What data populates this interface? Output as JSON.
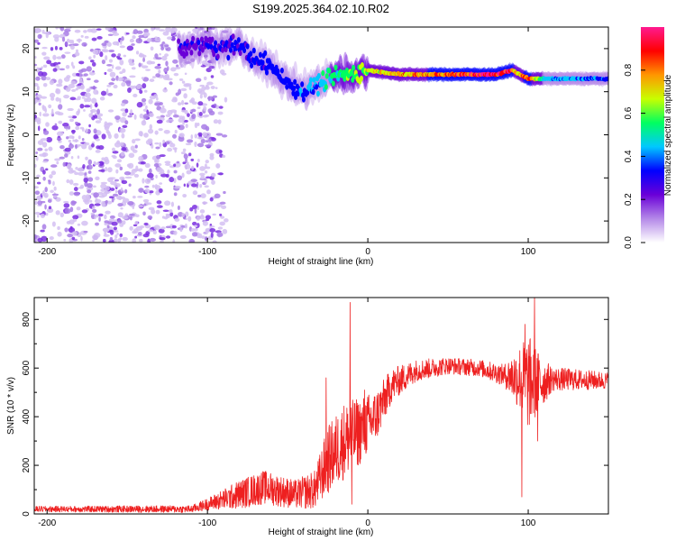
{
  "figure_title": "S199.2025.364.02.10.R02",
  "chart_data": [
    {
      "type": "heatmap",
      "panel": "spectrogram",
      "xlabel": "Height of straight line (km)",
      "ylabel": "Frequency (Hz)",
      "xlim": [
        -208,
        150
      ],
      "ylim": [
        -25,
        25
      ],
      "xticks": [
        -200,
        -100,
        0,
        100
      ],
      "yticks": [
        -20,
        -10,
        0,
        10,
        20
      ],
      "colorbar": {
        "label": "Normalized spectral amplitude",
        "range": [
          0.0,
          1.0
        ],
        "ticks": [
          0.0,
          0.2,
          0.4,
          0.6,
          0.8
        ],
        "tick_labels": [
          "0.0",
          "0.2",
          "0.4",
          "0.6",
          "0.8"
        ],
        "colormap": [
          "#ffffff",
          "#b488e8",
          "#6a00d8",
          "#0000ff",
          "#00c8ff",
          "#00ff60",
          "#c8ff00",
          "#ff9600",
          "#ff0000",
          "#ff1a90"
        ]
      },
      "noise_region": {
        "x": [
          -208,
          -96
        ],
        "y": [
          -25,
          25
        ],
        "amplitude": 0.1
      },
      "tone_track": [
        {
          "x": -115,
          "y": 20
        },
        {
          "x": -100,
          "y": 21
        },
        {
          "x": -90,
          "y": 20
        },
        {
          "x": -80,
          "y": 21
        },
        {
          "x": -70,
          "y": 17
        },
        {
          "x": -60,
          "y": 16
        },
        {
          "x": -50,
          "y": 12
        },
        {
          "x": -40,
          "y": 10
        },
        {
          "x": -30,
          "y": 12
        },
        {
          "x": -20,
          "y": 14
        },
        {
          "x": -10,
          "y": 14
        },
        {
          "x": 0,
          "y": 15
        },
        {
          "x": 20,
          "y": 14
        },
        {
          "x": 60,
          "y": 14
        },
        {
          "x": 80,
          "y": 14
        },
        {
          "x": 90,
          "y": 15
        },
        {
          "x": 100,
          "y": 13
        },
        {
          "x": 120,
          "y": 13
        },
        {
          "x": 150,
          "y": 13
        }
      ],
      "tone_amplitude": [
        {
          "x": -115,
          "a": 0.25
        },
        {
          "x": -80,
          "a": 0.3
        },
        {
          "x": -40,
          "a": 0.35
        },
        {
          "x": -20,
          "a": 0.5
        },
        {
          "x": 0,
          "a": 0.65
        },
        {
          "x": 20,
          "a": 0.75
        },
        {
          "x": 60,
          "a": 0.85
        },
        {
          "x": 85,
          "a": 0.95
        },
        {
          "x": 95,
          "a": 0.7
        },
        {
          "x": 100,
          "a": 0.9
        },
        {
          "x": 110,
          "a": 0.45
        },
        {
          "x": 150,
          "a": 0.35
        }
      ]
    },
    {
      "type": "line",
      "panel": "snr",
      "xlabel": "Height of straight line (km)",
      "ylabel": "SNR (10 * v/v)",
      "xlim": [
        -208,
        150
      ],
      "ylim": [
        0,
        890
      ],
      "xticks": [
        -200,
        -100,
        0,
        100
      ],
      "yticks": [
        0,
        200,
        400,
        600,
        800
      ],
      "series": [
        {
          "name": "SNR",
          "color": "#ee2020",
          "envelope": [
            {
              "x": -208,
              "mean": 20,
              "spread": 12
            },
            {
              "x": -110,
              "mean": 20,
              "spread": 15
            },
            {
              "x": -100,
              "mean": 40,
              "spread": 25
            },
            {
              "x": -80,
              "mean": 80,
              "spread": 60
            },
            {
              "x": -65,
              "mean": 110,
              "spread": 70
            },
            {
              "x": -45,
              "mean": 80,
              "spread": 60
            },
            {
              "x": -33,
              "mean": 100,
              "spread": 80
            },
            {
              "x": -25,
              "mean": 220,
              "spread": 140
            },
            {
              "x": -15,
              "mean": 300,
              "spread": 160
            },
            {
              "x": -5,
              "mean": 340,
              "spread": 140
            },
            {
              "x": 5,
              "mean": 400,
              "spread": 110
            },
            {
              "x": 15,
              "mean": 530,
              "spread": 70
            },
            {
              "x": 30,
              "mean": 590,
              "spread": 45
            },
            {
              "x": 50,
              "mean": 610,
              "spread": 35
            },
            {
              "x": 70,
              "mean": 600,
              "spread": 35
            },
            {
              "x": 85,
              "mean": 570,
              "spread": 45
            },
            {
              "x": 95,
              "mean": 560,
              "spread": 140
            },
            {
              "x": 100,
              "mean": 540,
              "spread": 200
            },
            {
              "x": 108,
              "mean": 540,
              "spread": 110
            },
            {
              "x": 115,
              "mean": 555,
              "spread": 50
            },
            {
              "x": 150,
              "mean": 548,
              "spread": 35
            }
          ],
          "spikes": [
            {
              "x": -26,
              "value": 560
            },
            {
              "x": -19,
              "value": 230
            },
            {
              "x": -11,
              "value": 870
            },
            {
              "x": -10,
              "value": 40
            },
            {
              "x": -2,
              "value": 510
            },
            {
              "x": 96,
              "value": 70
            },
            {
              "x": 98,
              "value": 780
            },
            {
              "x": 104,
              "value": 890
            },
            {
              "x": 106,
              "value": 300
            }
          ]
        }
      ]
    }
  ]
}
